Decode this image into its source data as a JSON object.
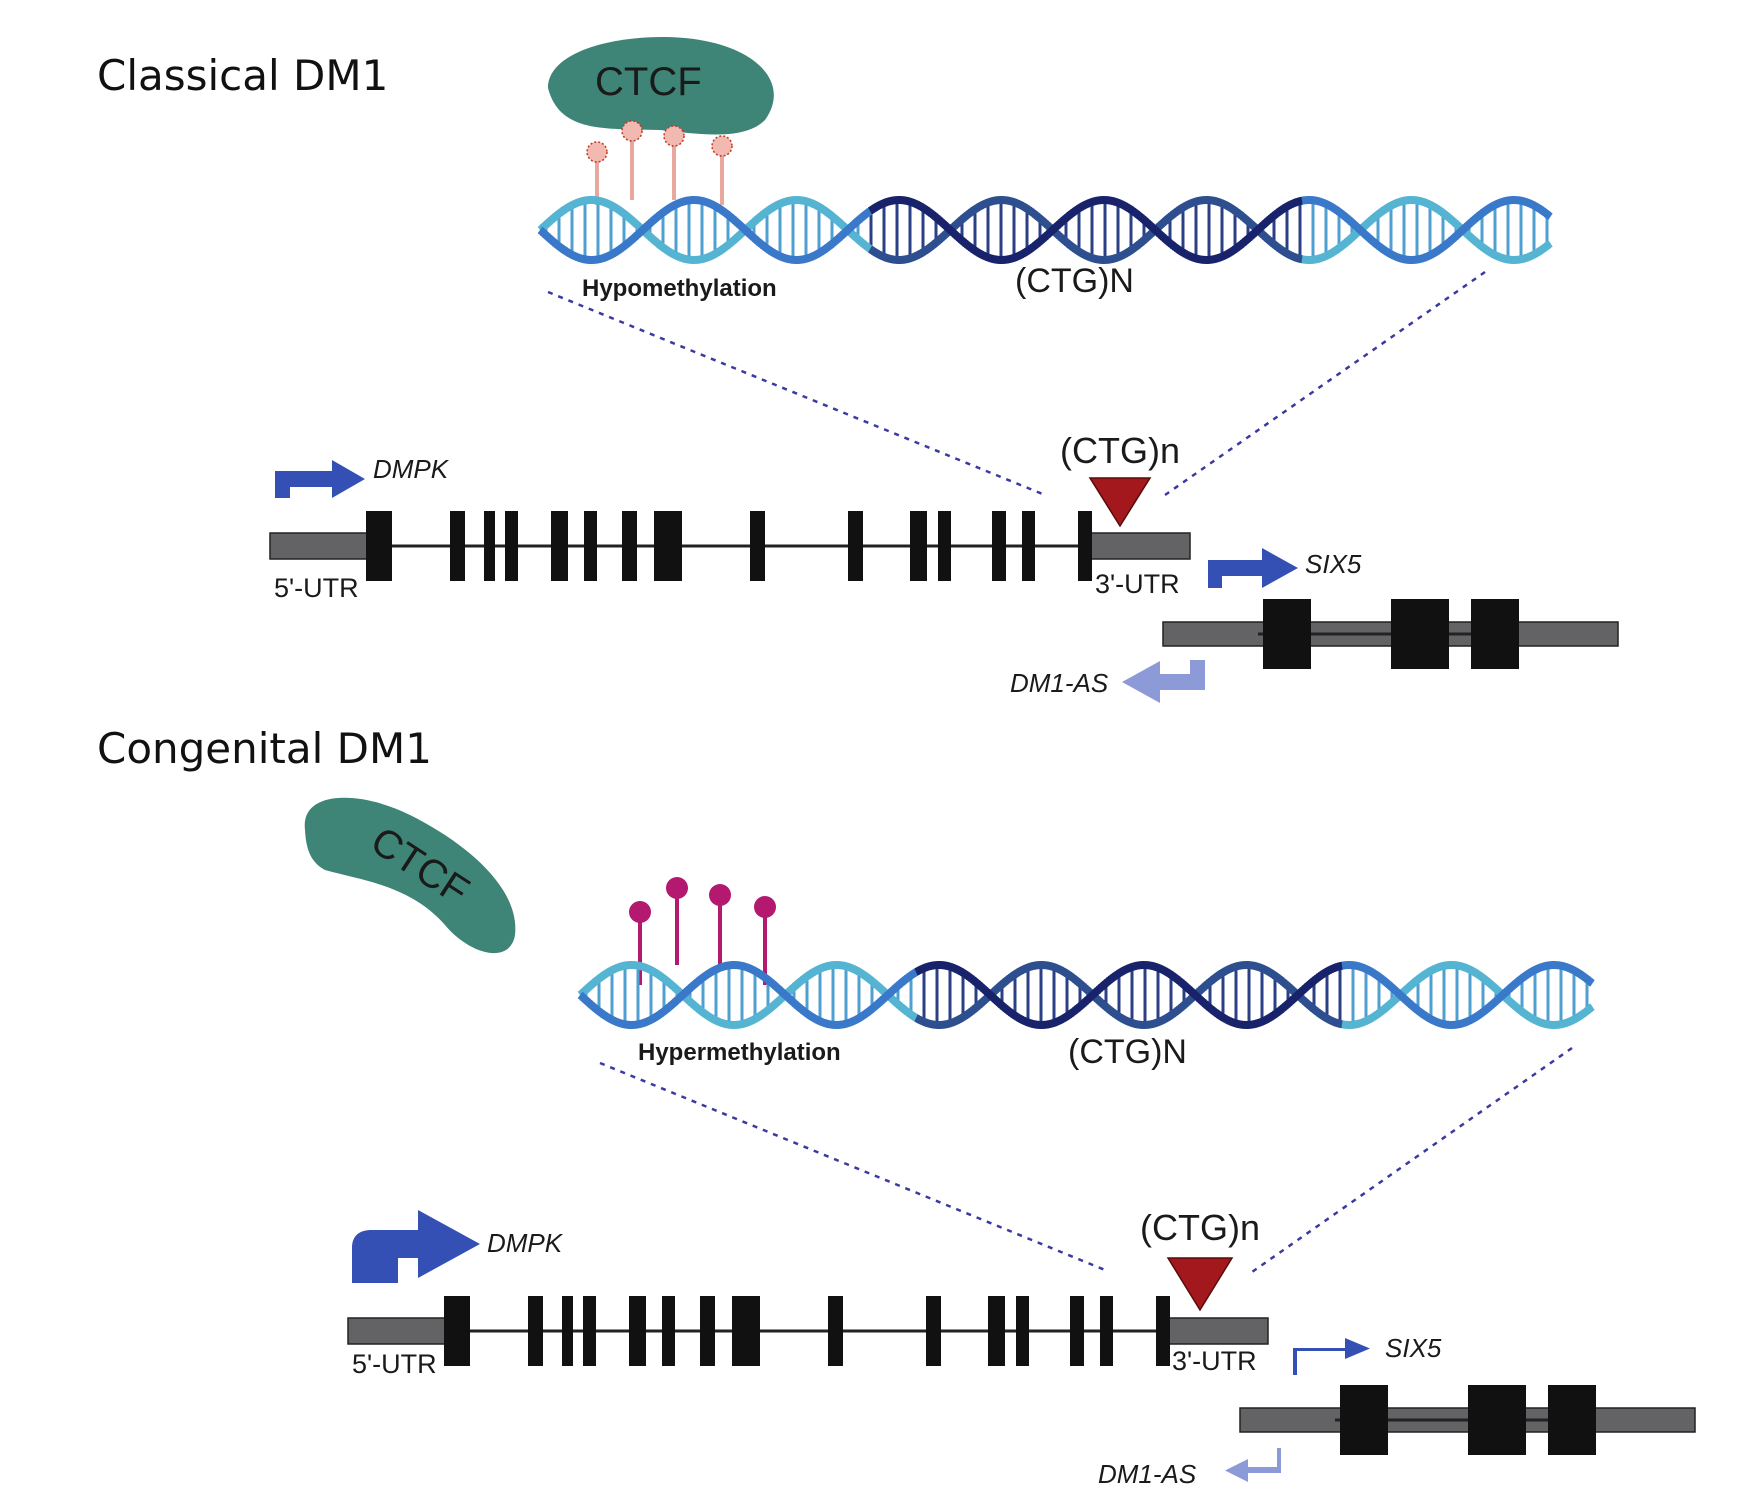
{
  "colors": {
    "ctcf": "#3f8577",
    "strand_light": "#56b4d3",
    "strand_mid": "#3a78c9",
    "strand_dark": "#18236b",
    "strand_darkmid": "#2e4f8f",
    "utr_gray": "#636366",
    "exon_black": "#111111",
    "promoter_blue": "#3550b5",
    "antisense_blue": "#8d9ad8",
    "repeat_red": "#a3181d",
    "dotted_line": "#3a3aa0",
    "hypo_lollipop": "#e8a8a0",
    "hyper_lollipop": "#b3196e"
  },
  "panels": [
    {
      "title": "Classical DM1",
      "ctcf_label": "CTCF",
      "methylation_label": "Hypomethylation",
      "methylation_state": "hypo",
      "dna_repeat_label": "(CTG)N",
      "repeat_label": "(CTG)n",
      "gene": {
        "main_gene": "DMPK",
        "utr5_label": "5'-UTR",
        "utr3_label": "3'-UTR",
        "downstream_gene": "SIX5",
        "antisense_gene": "DM1-AS"
      },
      "icons": [
        "ctcf-protein-icon",
        "dna-double-helix-icon",
        "methylation-lollipop-icon",
        "promoter-arrow-icon",
        "repeat-expansion-triangle-icon"
      ]
    },
    {
      "title": "Congenital DM1",
      "ctcf_label": "CTCF",
      "methylation_label": "Hypermethylation",
      "methylation_state": "hyper",
      "dna_repeat_label": "(CTG)N",
      "repeat_label": "(CTG)n",
      "gene": {
        "main_gene": "DMPK",
        "utr5_label": "5'-UTR",
        "utr3_label": "3'-UTR",
        "downstream_gene": "SIX5",
        "antisense_gene": "DM1-AS"
      },
      "icons": [
        "ctcf-protein-icon",
        "dna-double-helix-icon",
        "methylation-lollipop-icon",
        "promoter-arrow-icon",
        "repeat-expansion-triangle-icon"
      ]
    }
  ]
}
